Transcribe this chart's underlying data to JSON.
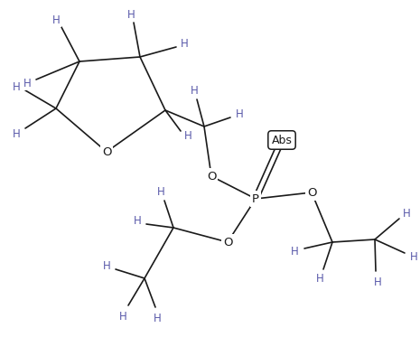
{
  "bg_color": "#ffffff",
  "H_color": "#5a5aaa",
  "atom_color": "#1a1a1a",
  "figsize": [
    4.65,
    3.94
  ],
  "dpi": 100,
  "xlim": [
    0,
    465
  ],
  "ylim": [
    0,
    394
  ]
}
